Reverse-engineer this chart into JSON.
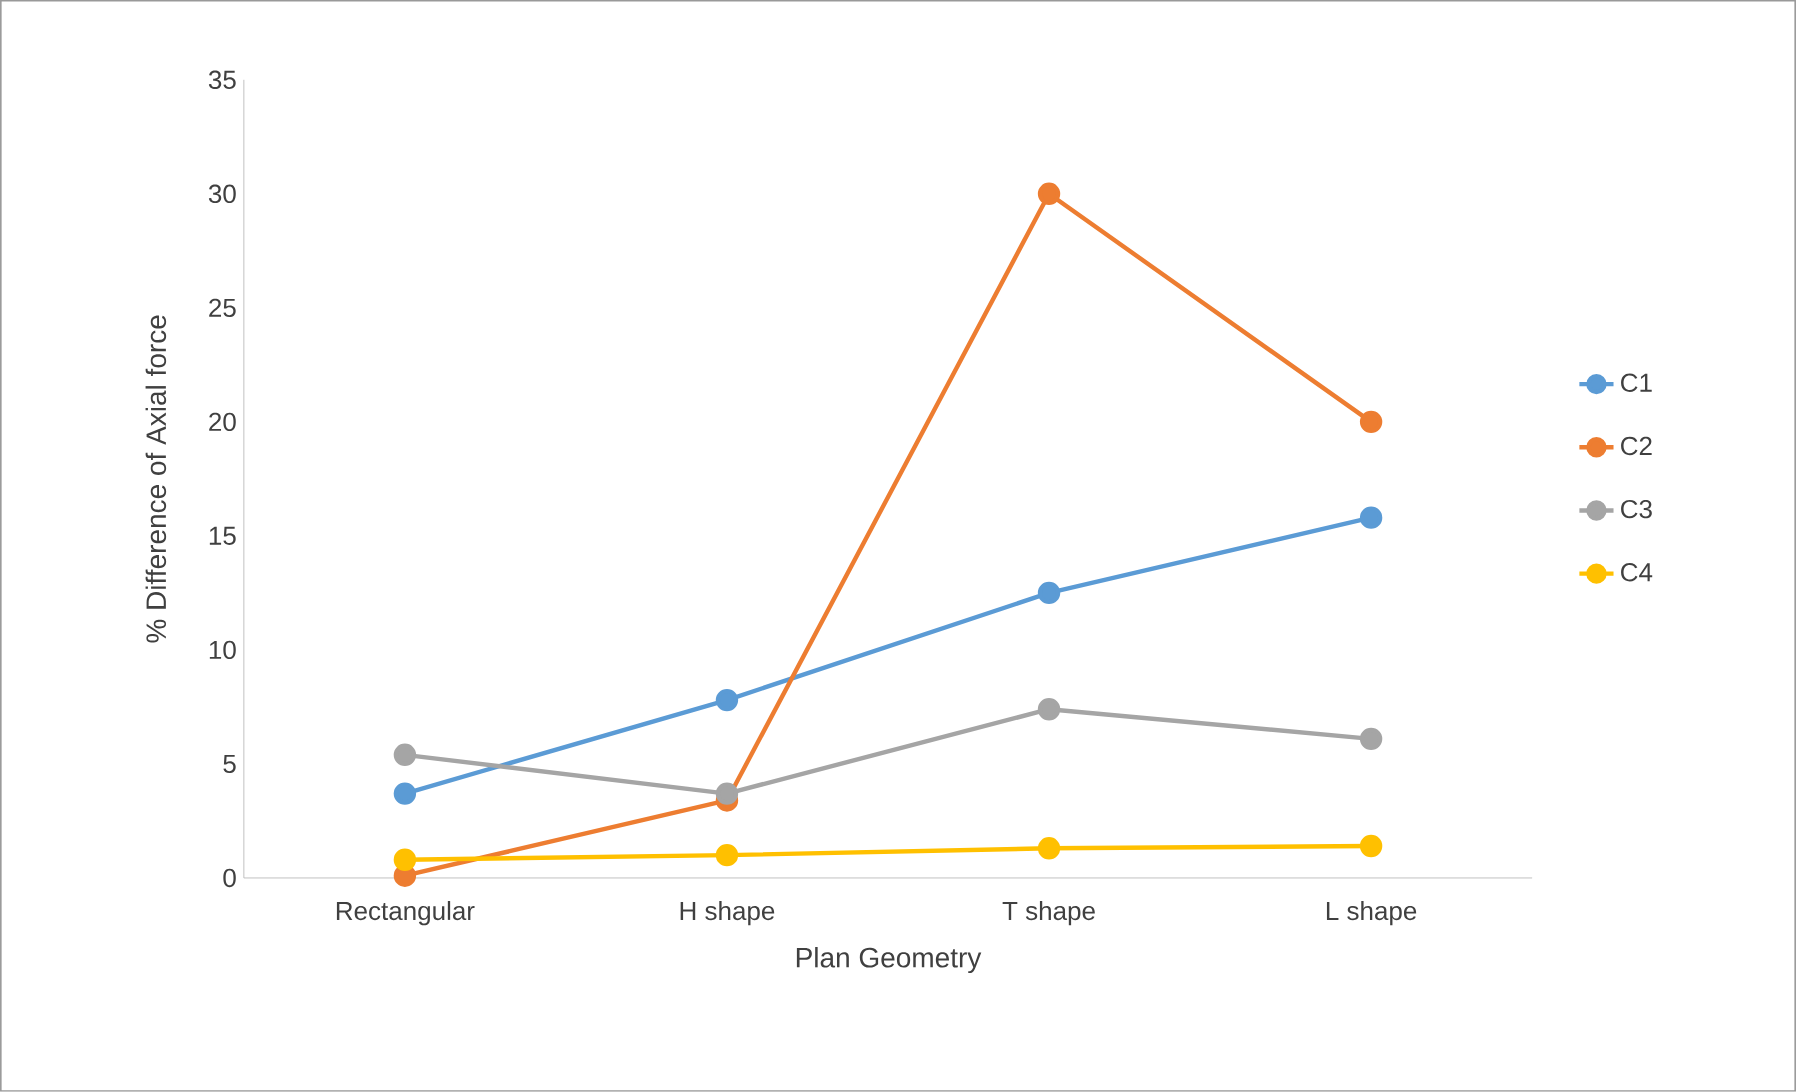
{
  "chart_data": {
    "type": "line",
    "xlabel": "Plan Geometry",
    "ylabel": "% Difference of Axial force",
    "categories": [
      "Rectangular",
      "H shape",
      "T shape",
      "L shape"
    ],
    "series": [
      {
        "name": "C1",
        "color": "#5b9bd5",
        "values": [
          3.7,
          7.8,
          12.5,
          15.8
        ]
      },
      {
        "name": "C2",
        "color": "#ed7d31",
        "values": [
          0.1,
          3.4,
          30,
          20
        ]
      },
      {
        "name": "C3",
        "color": "#a5a5a5",
        "values": [
          5.4,
          3.7,
          7.4,
          6.1
        ]
      },
      {
        "name": "C4",
        "color": "#ffc000",
        "values": [
          0.8,
          1.0,
          1.3,
          1.4
        ]
      }
    ],
    "ylim": [
      0,
      35
    ],
    "yticks": [
      0,
      5,
      10,
      15,
      20,
      25,
      30,
      35
    ],
    "grid": false,
    "legend": "right",
    "marker": "circle",
    "line_style": "solid"
  }
}
